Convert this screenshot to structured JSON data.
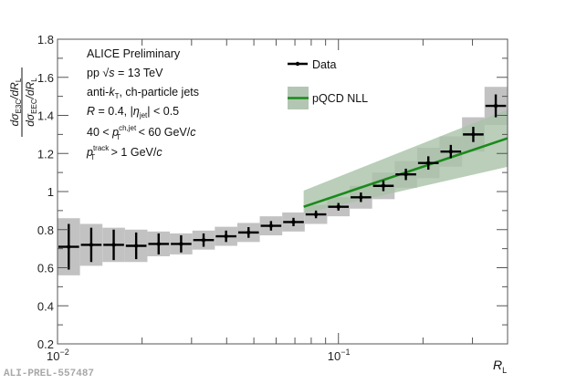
{
  "chart_data": {
    "type": "scatter",
    "title": "",
    "xlabel": "R_L",
    "ylabel": "dσ_E3C/dR_L / dσ_EEC/dR_L",
    "xscale": "log",
    "xlim": [
      0.01,
      0.4
    ],
    "ylim": [
      0.2,
      1.8
    ],
    "yticks": [
      "0.2",
      "0.4",
      "0.6",
      "0.8",
      "1",
      "1.2",
      "1.4",
      "1.6",
      "1.8"
    ],
    "xticks": [
      {
        "base": "10",
        "exp": "−2",
        "value": 0.01
      },
      {
        "base": "10",
        "exp": "−1",
        "value": 0.1
      }
    ],
    "grid": false,
    "legend_position": "top-center",
    "annotations": [
      "ALICE Preliminary",
      "pp √s = 13 TeV",
      "anti-kT, ch-particle jets",
      "R = 0.4, |η_jet| < 0.5",
      "40 < pT^ch,jet < 60 GeV/c",
      "pT^track > 1 GeV/c"
    ],
    "series": [
      {
        "name": "Data",
        "type": "points-with-errors",
        "color": "#000000",
        "syst_color": "#c2c2c2",
        "bin_edges_log10": [
          -2.0,
          -1.92,
          -1.84,
          -1.76,
          -1.68,
          -1.6,
          -1.52,
          -1.44,
          -1.36,
          -1.28,
          -1.2,
          -1.12,
          -1.04,
          -0.96,
          -0.88,
          -0.8,
          -0.72,
          -0.64,
          -0.56,
          -0.48,
          -0.4
        ],
        "values": [
          0.71,
          0.72,
          0.72,
          0.715,
          0.725,
          0.725,
          0.745,
          0.765,
          0.785,
          0.82,
          0.84,
          0.88,
          0.92,
          0.97,
          1.03,
          1.09,
          1.15,
          1.21,
          1.3,
          1.45
        ],
        "stat_err": [
          0.12,
          0.09,
          0.08,
          0.07,
          0.055,
          0.045,
          0.035,
          0.03,
          0.028,
          0.025,
          0.022,
          0.02,
          0.02,
          0.025,
          0.028,
          0.03,
          0.035,
          0.035,
          0.04,
          0.06
        ],
        "syst_err": [
          0.15,
          0.11,
          0.09,
          0.085,
          0.065,
          0.055,
          0.05,
          0.05,
          0.05,
          0.05,
          0.05,
          0.05,
          0.05,
          0.06,
          0.07,
          0.07,
          0.08,
          0.08,
          0.09,
          0.1
        ]
      },
      {
        "name": "pQCD NLL",
        "type": "band-line",
        "line_color": "#1a8a1a",
        "band_color": "#a9c2a9",
        "x": [
          0.0752,
          0.4
        ],
        "central": [
          0.92,
          1.28
        ],
        "upper": [
          1.005,
          1.43
        ],
        "lower": [
          0.885,
          1.13
        ]
      }
    ]
  },
  "legend": {
    "data_label": "Data",
    "theory_label": "pQCD NLL"
  },
  "text": {
    "line1": "ALICE Preliminary",
    "line2_a": "pp ",
    "line2_b": "s",
    "line2_c": " = 13 TeV",
    "line3_a": "anti-",
    "line3_b": "k",
    "line3_sub": "T",
    "line3_c": ", ch-particle jets",
    "line4_a": "R",
    "line4_b": " = 0.4, |",
    "line4_c": "η",
    "line4_sub": "jet",
    "line4_d": "| < 0.5",
    "line5_a": "40 < ",
    "line5_p": "p",
    "line5_sup": "ch,jet",
    "line5_sub": "T",
    "line5_c": " < 60 GeV/",
    "line5_cc": "c",
    "line6_p": "p",
    "line6_sup": "track",
    "line6_sub": "T",
    "line6_c": " > 1 GeV/",
    "line6_cc": "c"
  },
  "axis": {
    "xlabel_main": "R",
    "xlabel_sub": "L",
    "y_num_d": "dσ",
    "y_num_sub": "E3C",
    "y_num_rest": "/dR",
    "y_num_sub2": "L",
    "y_den_d": "dσ",
    "y_den_sub": "EEC",
    "y_den_rest": "/dR",
    "y_den_sub2": "L"
  },
  "watermark": "ALI-PREL-557487"
}
